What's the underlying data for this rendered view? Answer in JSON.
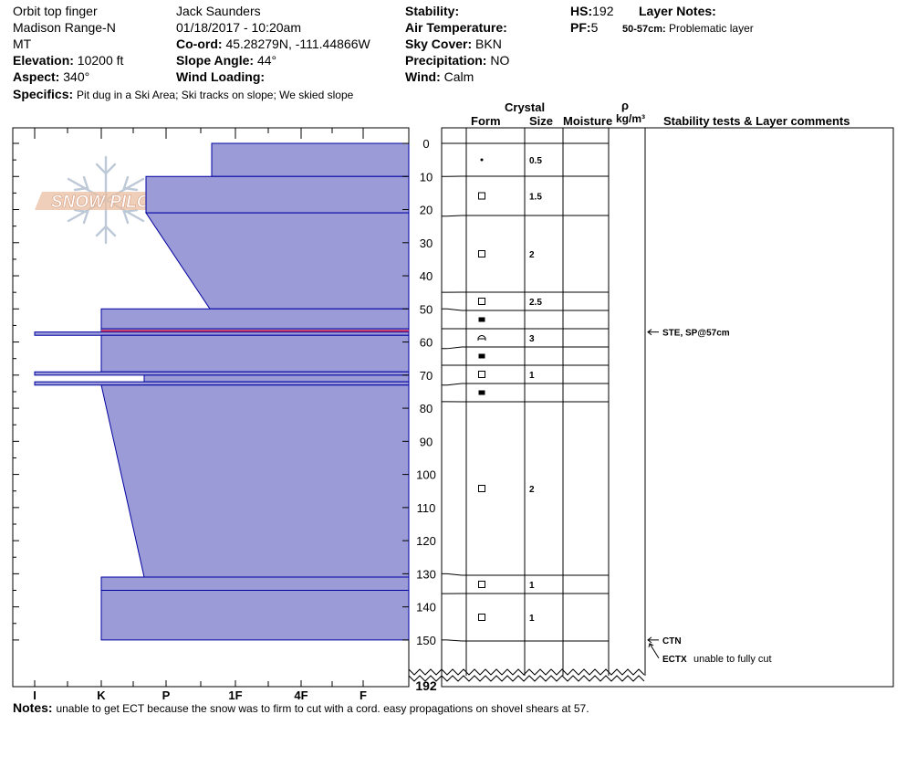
{
  "header": {
    "location": "Orbit top finger",
    "range": "Madison Range-N",
    "state": "MT",
    "elevation_label": "Elevation:",
    "elevation": "10200 ft",
    "aspect_label": "Aspect:",
    "aspect": "340°",
    "observer": "Jack Saunders",
    "datetime": "01/18/2017 - 10:20am",
    "coord_label": "Co-ord:",
    "coord": "45.28279N, -111.44866W",
    "slope_label": "Slope Angle:",
    "slope": "44°",
    "wind_loading_label": "Wind Loading:",
    "wind_loading": "",
    "stability_label": "Stability:",
    "stability": "",
    "air_temp_label": "Air Temperature:",
    "air_temp": "",
    "sky_label": "Sky Cover:",
    "sky": "BKN",
    "precip_label": "Precipitation:",
    "precip": "NO",
    "wind_label": "Wind:",
    "wind": "Calm",
    "hs_label": "HS:",
    "hs": "192",
    "pf_label": "PF:",
    "pf": "5",
    "layer_notes_label": "Layer Notes:",
    "layer_note_range": "50-57cm:",
    "layer_note_text": "Problematic layer",
    "specifics_label": "Specifics:",
    "specifics": "Pit dug in a Ski Area; Ski tracks on slope; We skied slope"
  },
  "columns": {
    "crystal": "Crystal",
    "form": "Form",
    "size": "Size",
    "moisture": "Moisture",
    "rho": "ρ",
    "density_unit": "kg/m³",
    "stability_tests": "Stability tests & Layer comments"
  },
  "notes_label": "Notes:",
  "notes": "unable to get ECT because the snow was to firm to cut with a cord. easy propagations on shovel shears at 57.",
  "logo_text": "SNOW PILOT",
  "colors": {
    "hardness_fill": "#9b9bd8",
    "hardness_line": "#0000a0",
    "weak_layer": "#d0305a"
  },
  "chart_data": {
    "type": "snow-profile",
    "y_axis": {
      "label": "",
      "depth_ticks": [
        0,
        10,
        20,
        30,
        40,
        50,
        60,
        70,
        80,
        90,
        100,
        110,
        120,
        130,
        140,
        150
      ],
      "bottom_label": "192",
      "range": [
        0,
        192
      ]
    },
    "hardness_axis": {
      "labels": [
        "I",
        "K",
        "P",
        "1F",
        "4F",
        "F"
      ]
    },
    "hardness_profile": [
      {
        "top": 0,
        "bottom": 10,
        "hardness_top": "F+",
        "hardness_bottom": "F+"
      },
      {
        "top": 10,
        "bottom": 21,
        "hardness_top": "4F-",
        "hardness_bottom": "4F-"
      },
      {
        "top": 21,
        "bottom": 50,
        "hardness_top": "4F-",
        "hardness_bottom": "1F"
      },
      {
        "top": 50,
        "bottom": 56,
        "hardness_top": "K",
        "hardness_bottom": "K"
      },
      {
        "top": 56,
        "bottom": 57,
        "hardness_top": "K",
        "hardness_bottom": "K"
      },
      {
        "top": 57,
        "bottom": 58,
        "hardness_top": "I",
        "hardness_bottom": "I"
      },
      {
        "top": 58,
        "bottom": 69,
        "hardness_top": "K",
        "hardness_bottom": "K"
      },
      {
        "top": 69,
        "bottom": 70,
        "hardness_top": "I",
        "hardness_bottom": "I"
      },
      {
        "top": 70,
        "bottom": 72,
        "hardness_top": "P",
        "hardness_bottom": "P"
      },
      {
        "top": 72,
        "bottom": 73,
        "hardness_top": "I",
        "hardness_bottom": "I"
      },
      {
        "top": 73,
        "bottom": 131,
        "hardness_top": "K",
        "hardness_bottom": "P"
      },
      {
        "top": 131,
        "bottom": 135,
        "hardness_top": "K",
        "hardness_bottom": "K"
      },
      {
        "top": 135,
        "bottom": 150,
        "hardness_top": "K",
        "hardness_bottom": "K"
      }
    ],
    "layers": [
      {
        "top": 0,
        "bottom": 10,
        "form": "dot",
        "size": "0.5"
      },
      {
        "top": 10,
        "bottom": 22,
        "form": "square",
        "size": "1.5"
      },
      {
        "top": 22,
        "bottom": 45,
        "form": "square",
        "size": "2"
      },
      {
        "top": 45,
        "bottom": 50,
        "form": "square",
        "size": "2.5"
      },
      {
        "top": 50,
        "bottom": 56,
        "form": "filled",
        "size": ""
      },
      {
        "top": 56,
        "bottom": 62,
        "form": "cup",
        "size": "3"
      },
      {
        "top": 62,
        "bottom": 67,
        "form": "filled",
        "size": ""
      },
      {
        "top": 67,
        "bottom": 73,
        "form": "square",
        "size": "1"
      },
      {
        "top": 73,
        "bottom": 78,
        "form": "filled",
        "size": ""
      },
      {
        "top": 78,
        "bottom": 130,
        "form": "square",
        "size": "2"
      },
      {
        "top": 130,
        "bottom": 136,
        "form": "square",
        "size": "1"
      },
      {
        "top": 136,
        "bottom": 150,
        "form": "square",
        "size": "1"
      }
    ],
    "stability_tests": [
      {
        "depth": 57,
        "code": "STE, SP@57cm",
        "comment": ""
      },
      {
        "depth": 150,
        "code": "CTN",
        "comment": ""
      },
      {
        "depth": 150,
        "code": "ECTX",
        "comment": "unable to fully cut"
      }
    ]
  }
}
